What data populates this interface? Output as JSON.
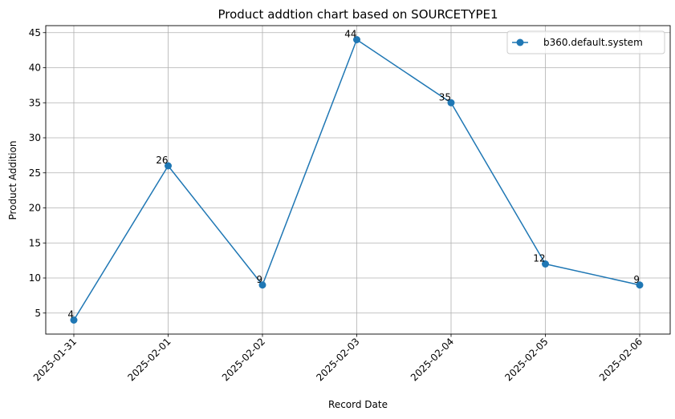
{
  "chart_data": {
    "type": "line",
    "title": "Product addtion chart based on SOURCETYPE1",
    "xlabel": "Record Date",
    "ylabel": "Product Addition",
    "categories": [
      "2025-01-31",
      "2025-02-01",
      "2025-02-02",
      "2025-02-03",
      "2025-02-04",
      "2025-02-05",
      "2025-02-06"
    ],
    "series": [
      {
        "name": "b360.default.system",
        "values": [
          4,
          26,
          9,
          44,
          35,
          12,
          9
        ],
        "color": "#1f77b4"
      }
    ],
    "yticks": [
      5,
      10,
      15,
      20,
      25,
      30,
      35,
      40,
      45
    ],
    "ylim": [
      2,
      46
    ],
    "grid": true,
    "legend_position": "top-right",
    "data_labels": true,
    "x_tick_rotation": -45
  }
}
